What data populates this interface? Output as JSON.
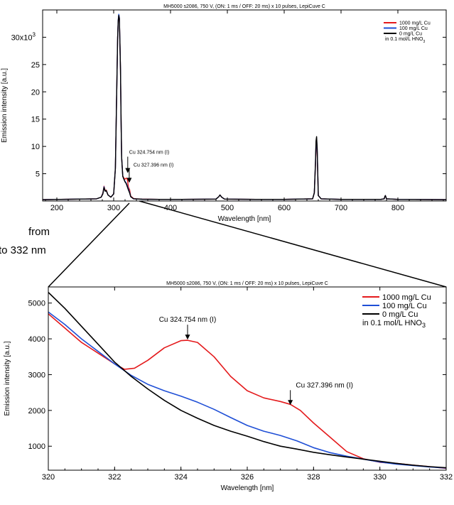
{
  "zoom_note": {
    "line1": "from",
    "line2": "to 332 nm"
  },
  "chart_data": [
    {
      "type": "line",
      "title": "MH5000 s2086, 750 V, (ON: 1 ms / OFF: 20 ms) x 10 pulses, LepiCuve C",
      "xlabel": "Wavelength [nm]",
      "ylabel": "Emission intensity [a.u.]",
      "xlim": [
        175,
        885
      ],
      "ylim": [
        0,
        35000
      ],
      "x_ticks": [
        200,
        300,
        400,
        500,
        600,
        700,
        800
      ],
      "x_tick_labels": [
        "200",
        "300",
        "400",
        "500",
        "600",
        "700",
        "800"
      ],
      "y_ticks": [
        5000,
        10000,
        15000,
        20000,
        25000,
        30000
      ],
      "y_tick_labels": [
        "5",
        "10",
        "15",
        "20",
        "25",
        "30x10"
      ],
      "y_exponent": "3",
      "grid": false,
      "legend_position": "top-right",
      "legend_note": "in 0.1 mol/L HNO",
      "legend_note_sub": "3",
      "annotations": [
        {
          "text": "Cu 324.754 nm (I)",
          "x": 324.754,
          "y": 5000
        },
        {
          "text": "Cu 327.396 nm (I)",
          "x": 327.396,
          "y": 3200
        }
      ],
      "series": [
        {
          "name": "1000 mg/L Cu",
          "color": "#e41a1c",
          "x": [
            175,
            270,
            278,
            281,
            283,
            285,
            287,
            290,
            295,
            300,
            303,
            305,
            307,
            308,
            309,
            310,
            311,
            312,
            313,
            314,
            316,
            318,
            320,
            322,
            324,
            326,
            328,
            330,
            335,
            340,
            350,
            380,
            420,
            480,
            485,
            487,
            490,
            495,
            550,
            600,
            650,
            653,
            655,
            656,
            657,
            658,
            660,
            665,
            700,
            770,
            776,
            777,
            778,
            780,
            800,
            885
          ],
          "y": [
            250,
            400,
            700,
            1500,
            2700,
            1900,
            2000,
            1100,
            700,
            1300,
            6000,
            18000,
            30000,
            33000,
            34000,
            33500,
            29000,
            24000,
            15000,
            8000,
            4600,
            4200,
            4000,
            4200,
            4000,
            2500,
            2100,
            900,
            450,
            400,
            350,
            300,
            300,
            350,
            800,
            1100,
            700,
            350,
            300,
            300,
            400,
            1500,
            6500,
            10000,
            11000,
            9000,
            1000,
            400,
            300,
            300,
            400,
            800,
            1000,
            400,
            300,
            250
          ]
        },
        {
          "name": "100 mg/L Cu",
          "color": "#1f4fd6",
          "x": [
            175,
            270,
            278,
            281,
            283,
            285,
            287,
            290,
            295,
            300,
            303,
            305,
            307,
            308,
            309,
            310,
            311,
            312,
            313,
            314,
            316,
            318,
            320,
            322,
            324,
            326,
            328,
            330,
            335,
            340,
            350,
            380,
            420,
            480,
            485,
            487,
            490,
            495,
            550,
            600,
            650,
            653,
            655,
            656,
            657,
            658,
            660,
            665,
            700,
            770,
            776,
            777,
            778,
            780,
            800,
            885
          ],
          "y": [
            250,
            400,
            700,
            1400,
            2600,
            1800,
            1900,
            1100,
            700,
            1300,
            6000,
            18000,
            30000,
            33200,
            34200,
            33600,
            29000,
            24000,
            15000,
            8000,
            4500,
            4000,
            3600,
            3300,
            2800,
            2200,
            1600,
            800,
            400,
            380,
            330,
            300,
            300,
            350,
            800,
            1100,
            700,
            350,
            300,
            300,
            400,
            1500,
            6800,
            10500,
            11500,
            9500,
            1000,
            400,
            300,
            300,
            400,
            800,
            1000,
            400,
            300,
            250
          ]
        },
        {
          "name": "0 mg/L Cu",
          "color": "#000000",
          "x": [
            175,
            270,
            278,
            281,
            283,
            285,
            287,
            290,
            295,
            300,
            303,
            305,
            307,
            308,
            309,
            310,
            311,
            312,
            313,
            314,
            316,
            318,
            320,
            322,
            324,
            326,
            328,
            330,
            335,
            340,
            350,
            380,
            420,
            480,
            485,
            487,
            490,
            495,
            550,
            600,
            650,
            653,
            655,
            656,
            657,
            658,
            660,
            665,
            700,
            770,
            776,
            777,
            778,
            780,
            800,
            885
          ],
          "y": [
            250,
            400,
            700,
            1300,
            2500,
            1800,
            1900,
            1100,
            700,
            1300,
            6000,
            18000,
            30000,
            33000,
            34000,
            33400,
            29000,
            24000,
            15000,
            8000,
            4500,
            4000,
            3500,
            3200,
            2600,
            2000,
            1500,
            800,
            400,
            380,
            330,
            300,
            300,
            350,
            800,
            1100,
            700,
            350,
            300,
            300,
            400,
            1500,
            7000,
            11000,
            11800,
            9800,
            1000,
            400,
            300,
            300,
            400,
            800,
            1000,
            400,
            300,
            250
          ]
        }
      ]
    },
    {
      "type": "line",
      "title": "MH5000 s2086, 750 V, (ON: 1 ms / OFF: 20 ms) x 10 pulses, LepiCuve C",
      "xlabel": "Wavelength [nm]",
      "ylabel": "Emission intensity [a.u.]",
      "xlim": [
        320,
        332
      ],
      "ylim": [
        330,
        5450
      ],
      "x_ticks": [
        320,
        322,
        324,
        326,
        328,
        330,
        332
      ],
      "x_tick_labels": [
        "320",
        "322",
        "324",
        "326",
        "328",
        "330",
        "332"
      ],
      "y_ticks": [
        1000,
        2000,
        3000,
        4000,
        5000
      ],
      "y_tick_labels": [
        "1000",
        "2000",
        "3000",
        "4000",
        "5000"
      ],
      "grid": false,
      "legend_position": "top-right",
      "legend_note": "in 0.1 mol/L HNO",
      "legend_note_sub": "3",
      "annotations": [
        {
          "text": "Cu 324.754 nm (I)",
          "x": 324.2,
          "y": 3960
        },
        {
          "text": "Cu 327.396 nm (I)",
          "x": 327.3,
          "y": 2130
        }
      ],
      "series": [
        {
          "name": "1000 mg/L Cu",
          "color": "#e41a1c",
          "x": [
            320,
            320.5,
            321,
            321.5,
            322,
            322.3,
            322.6,
            323,
            323.5,
            324,
            324.2,
            324.5,
            325,
            325.5,
            326,
            326.5,
            327,
            327.3,
            327.6,
            328,
            328.5,
            329,
            329.5,
            330,
            330.5,
            331,
            331.5,
            332
          ],
          "y": [
            4700,
            4300,
            3900,
            3600,
            3300,
            3150,
            3180,
            3400,
            3750,
            3950,
            3960,
            3900,
            3500,
            2950,
            2550,
            2350,
            2250,
            2170,
            2000,
            1650,
            1250,
            850,
            650,
            550,
            520,
            470,
            430,
            380
          ]
        },
        {
          "name": "100 mg/L Cu",
          "color": "#1f4fd6",
          "x": [
            320,
            320.5,
            321,
            321.5,
            322,
            322.5,
            323,
            323.5,
            324,
            324.5,
            325,
            325.5,
            326,
            326.5,
            327,
            327.5,
            328,
            328.5,
            329,
            329.5,
            330,
            330.5,
            331,
            331.5,
            332
          ],
          "y": [
            4750,
            4400,
            4000,
            3650,
            3300,
            2980,
            2730,
            2550,
            2400,
            2230,
            2030,
            1800,
            1580,
            1420,
            1300,
            1150,
            960,
            820,
            720,
            640,
            560,
            500,
            460,
            420,
            390
          ]
        },
        {
          "name": "0 mg/L Cu",
          "color": "#000000",
          "x": [
            320,
            320.5,
            321,
            321.5,
            322,
            322.5,
            323,
            323.5,
            324,
            324.5,
            325,
            325.5,
            326,
            326.5,
            327,
            327.5,
            328,
            328.5,
            329,
            329.5,
            330,
            330.5,
            331,
            331.5,
            332
          ],
          "y": [
            5300,
            4850,
            4350,
            3850,
            3350,
            2950,
            2600,
            2280,
            2000,
            1780,
            1580,
            1420,
            1280,
            1130,
            1000,
            920,
            830,
            760,
            700,
            640,
            580,
            520,
            470,
            430,
            400
          ]
        }
      ]
    }
  ]
}
